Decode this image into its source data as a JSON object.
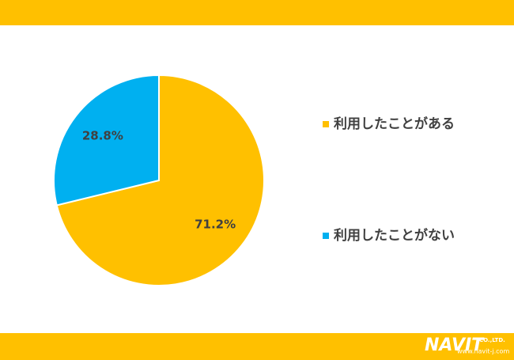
{
  "chart_data": {
    "type": "pie",
    "categories": [
      "利用したことがある",
      "利用したことがない"
    ],
    "values": [
      71.2,
      28.8
    ],
    "value_labels": [
      "71.2%",
      "28.8%"
    ],
    "colors": [
      "#FFC000",
      "#00B0F0"
    ],
    "legend": "right"
  },
  "footer": {
    "logo": "NAVIT",
    "company": "CO.,LTD.",
    "url": "www.navit-j.com"
  }
}
